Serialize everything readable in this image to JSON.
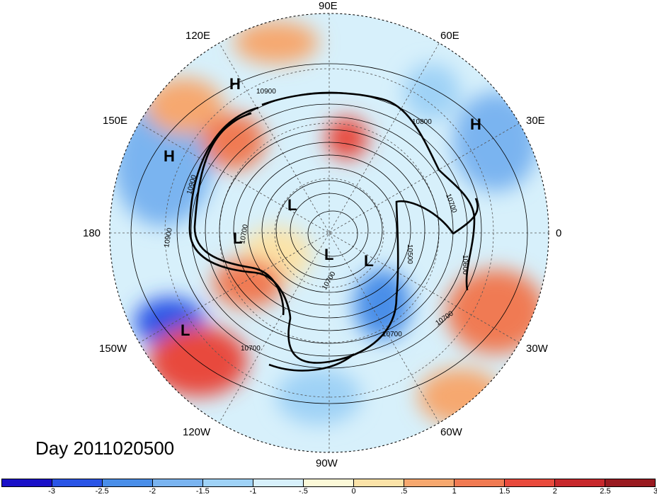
{
  "date_text": "Day 2011020500",
  "longitude_labels": [
    "90E",
    "60E",
    "30E",
    "0",
    "30W",
    "60W",
    "90W",
    "120W",
    "150W",
    "180",
    "150E",
    "120E"
  ],
  "pressure_centers": [
    {
      "label": "H",
      "region": "east-siberia"
    },
    {
      "label": "H",
      "region": "north-pacific"
    },
    {
      "label": "H",
      "region": "europe"
    },
    {
      "label": "L",
      "region": "alaska"
    },
    {
      "label": "L",
      "region": "gulf-of-alaska"
    },
    {
      "label": "L",
      "region": "north-pacific-east"
    },
    {
      "label": "L",
      "region": "arctic"
    },
    {
      "label": "L",
      "region": "greenland"
    }
  ],
  "contour_labels": [
    "10900",
    "10900",
    "10800",
    "10700",
    "10900",
    "10500",
    "10700",
    "10700",
    "10700",
    "10600",
    "10700",
    "10700"
  ],
  "colorbar": {
    "colors": [
      "#1a10c8",
      "#2a55e6",
      "#4a8ee8",
      "#7ab4f0",
      "#9fd2f6",
      "#d7f0fb",
      "#fcf9d8",
      "#fbe3a8",
      "#f6a86f",
      "#f07a52",
      "#e84a3c",
      "#c7282c",
      "#991a20"
    ],
    "tick_labels": [
      "-3",
      "-2.5",
      "-2",
      "-1.5",
      "-1",
      "-.5",
      "0",
      ".5",
      "1",
      "1.5",
      "2",
      "2.5",
      "3"
    ]
  }
}
